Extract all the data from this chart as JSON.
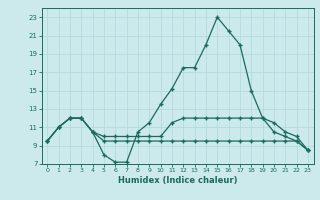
{
  "xlabel": "Humidex (Indice chaleur)",
  "x": [
    0,
    1,
    2,
    3,
    4,
    5,
    6,
    7,
    8,
    9,
    10,
    11,
    12,
    13,
    14,
    15,
    16,
    17,
    18,
    19,
    20,
    21,
    22,
    23
  ],
  "line1": [
    9.5,
    11.0,
    12.0,
    12.0,
    10.5,
    8.0,
    7.2,
    7.2,
    10.5,
    11.5,
    13.5,
    15.2,
    17.5,
    17.5,
    20.0,
    23.0,
    21.5,
    20.0,
    15.0,
    12.0,
    10.5,
    10.0,
    9.5,
    8.5
  ],
  "line2": [
    9.5,
    11.0,
    12.0,
    12.0,
    10.5,
    10.0,
    10.0,
    10.0,
    10.0,
    10.0,
    10.0,
    11.5,
    12.0,
    12.0,
    12.0,
    12.0,
    12.0,
    12.0,
    12.0,
    12.0,
    11.5,
    10.5,
    10.0,
    8.5
  ],
  "line3": [
    9.5,
    11.0,
    12.0,
    12.0,
    10.5,
    9.5,
    9.5,
    9.5,
    9.5,
    9.5,
    9.5,
    9.5,
    9.5,
    9.5,
    9.5,
    9.5,
    9.5,
    9.5,
    9.5,
    9.5,
    9.5,
    9.5,
    9.5,
    8.5
  ],
  "ylim": [
    7,
    24
  ],
  "xlim": [
    -0.5,
    23.5
  ],
  "yticks": [
    7,
    9,
    11,
    13,
    15,
    17,
    19,
    21,
    23
  ],
  "xticks": [
    0,
    1,
    2,
    3,
    4,
    5,
    6,
    7,
    8,
    9,
    10,
    11,
    12,
    13,
    14,
    15,
    16,
    17,
    18,
    19,
    20,
    21,
    22,
    23
  ],
  "line_color": "#1a6b5e",
  "bg_color": "#cce9ec",
  "grid_color": "#b0d8dc"
}
